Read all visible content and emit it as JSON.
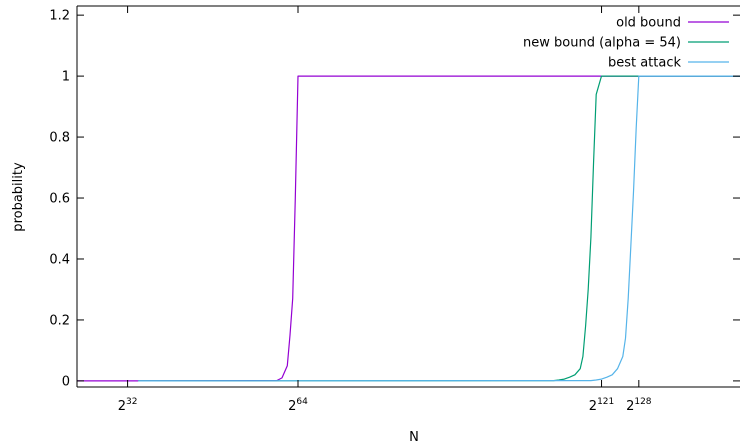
{
  "chart_data": {
    "type": "line",
    "xlabel": "N",
    "ylabel": "probability",
    "x_unit": "log2(N)",
    "xlim": [
      22.5,
      147
    ],
    "ylim": [
      -0.02,
      1.23
    ],
    "x_ticks": [
      {
        "value": 32,
        "base": "2",
        "exp": "32"
      },
      {
        "value": 64,
        "base": "2",
        "exp": "64"
      },
      {
        "value": 121,
        "base": "2",
        "exp": "121"
      },
      {
        "value": 128,
        "base": "2",
        "exp": "128"
      }
    ],
    "y_ticks": [
      {
        "value": 0,
        "label": "0"
      },
      {
        "value": 0.2,
        "label": "0.2"
      },
      {
        "value": 0.4,
        "label": "0.4"
      },
      {
        "value": 0.6,
        "label": "0.6"
      },
      {
        "value": 0.8,
        "label": "0.8"
      },
      {
        "value": 1,
        "label": "1"
      },
      {
        "value": 1.2,
        "label": "1.2"
      }
    ],
    "legend_position": "top-right",
    "grid": false,
    "series": [
      {
        "name": "old bound",
        "color": "#9400d3",
        "x": [
          22.5,
          34,
          60,
          61,
          62,
          62.5,
          63,
          63.5,
          64,
          147
        ],
        "y": [
          0,
          0,
          0.001,
          0.01,
          0.05,
          0.15,
          0.27,
          0.6,
          1,
          1
        ]
      },
      {
        "name": "new bound (alpha = 54)",
        "color": "#009e73",
        "x": [
          34,
          112,
          113,
          114,
          115,
          116,
          117,
          117.5,
          118,
          118.5,
          119,
          119.5,
          120,
          121,
          147
        ],
        "y": [
          0,
          0.001,
          0.003,
          0.006,
          0.012,
          0.02,
          0.04,
          0.08,
          0.18,
          0.3,
          0.47,
          0.72,
          0.94,
          1,
          1
        ]
      },
      {
        "name": "best attack",
        "color": "#56b4e9",
        "x": [
          34,
          119,
          120,
          121,
          122,
          123,
          124,
          125,
          125.5,
          126,
          126.5,
          127,
          127.5,
          128,
          147
        ],
        "y": [
          0,
          0.001,
          0.003,
          0.006,
          0.012,
          0.02,
          0.04,
          0.08,
          0.14,
          0.27,
          0.44,
          0.62,
          0.83,
          1,
          1
        ]
      }
    ]
  }
}
